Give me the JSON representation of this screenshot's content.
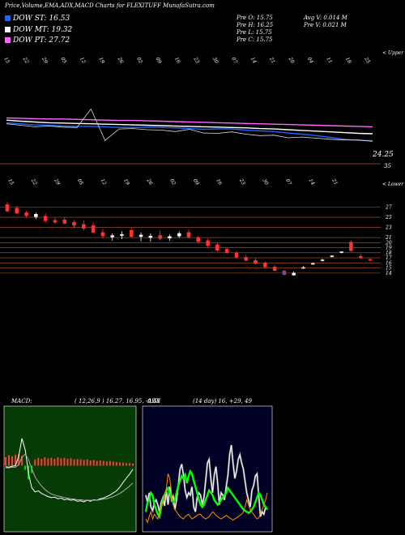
{
  "header": {
    "title": "Price,Volume,EMA,ADX,MACD Charts for FLEXITUFF MunafaSutra.com",
    "dow_st": "DOW ST: 16.53",
    "dow_mt": "DOW MT: 19.32",
    "dow_pt": "DOW PT: 27.72",
    "pre_o": "Pre   O: 15.75",
    "pre_h": "Pre   H: 16.25",
    "pre_l": "Pre   L: 15.75",
    "pre_c": "Pre   C: 15.75",
    "avg_v": "Avg V: 0.014   M",
    "pre_v": "Pre   V: 0.021 M",
    "upper_label": "< Upper",
    "lower_label": "< Lower",
    "ema_price_label": "24.25",
    "ema_axis_label": "35"
  },
  "colors": {
    "dow_st": "#1a66ff",
    "dow_mt": "#ffffff",
    "dow_pt": "#ff66ff",
    "up_candle": "#ffffff",
    "down_candle": "#ff3333",
    "grid": "#b35a28",
    "adx_plus": "#00ff00",
    "adx_minus": "#ff8c00"
  },
  "chart_data": [
    {
      "type": "line",
      "panel": "ema",
      "series": [
        {
          "name": "DOW ST",
          "values": [
            29.3,
            29.0,
            28.7,
            28.6,
            28.4,
            28.3,
            28.3,
            28.2,
            28.0,
            28.0,
            28.1,
            28.0,
            27.9,
            27.7,
            27.5,
            27.6,
            27.6,
            27.3,
            27.1,
            26.9,
            26.5,
            26.2,
            25.8,
            25.3,
            24.8,
            24.5,
            24.4
          ]
        },
        {
          "name": "DOW MT",
          "values": [
            30.0,
            29.7,
            29.5,
            29.3,
            29.2,
            29.1,
            29.0,
            28.9,
            28.8,
            28.7,
            28.6,
            28.5,
            28.4,
            28.3,
            28.2,
            28.1,
            28.0,
            27.9,
            27.7,
            27.6,
            27.4,
            27.2,
            27.0,
            26.8,
            26.6,
            26.4,
            26.3
          ]
        },
        {
          "name": "DOW PT",
          "values": [
            30.6,
            30.5,
            30.4,
            30.3,
            30.3,
            30.2,
            30.1,
            30.0,
            29.9,
            29.9,
            29.8,
            29.7,
            29.6,
            29.5,
            29.4,
            29.3,
            29.2,
            29.1,
            29.0,
            28.9,
            28.8,
            28.7,
            28.6,
            28.5,
            28.4,
            28.3,
            28.2
          ]
        }
      ],
      "price_values": [
        29.0,
        28.6,
        28.2,
        28.4,
        28.1,
        28.0,
        33.0,
        24.5,
        27.6,
        27.7,
        27.4,
        27.3,
        26.9,
        27.5,
        26.5,
        26.4,
        26.8,
        26.2,
        25.8,
        25.9,
        25.2,
        25.4,
        25.1,
        24.8,
        24.6,
        24.6,
        24.25
      ],
      "date_labels": [
        "15",
        "22",
        "29",
        "05",
        "12",
        "19",
        "26",
        "02",
        "09",
        "16",
        "23",
        "30",
        "07",
        "14",
        "21",
        "28",
        "04",
        "11",
        "18",
        "25"
      ]
    },
    {
      "type": "bar",
      "panel": "candles",
      "y_ticks": [
        27,
        25,
        23,
        21,
        20,
        19,
        18,
        17,
        16,
        15,
        14
      ],
      "candles": [
        {
          "o": 27.5,
          "h": 28.0,
          "l": 26.0,
          "c": 26.2
        },
        {
          "o": 26.8,
          "h": 27.3,
          "l": 25.6,
          "c": 25.8
        },
        {
          "o": 25.9,
          "h": 26.3,
          "l": 24.9,
          "c": 25.3
        },
        {
          "o": 25.1,
          "h": 25.9,
          "l": 24.7,
          "c": 25.6
        },
        {
          "o": 25.2,
          "h": 25.8,
          "l": 23.9,
          "c": 24.3
        },
        {
          "o": 24.4,
          "h": 24.9,
          "l": 23.7,
          "c": 24.0
        },
        {
          "o": 24.5,
          "h": 25.0,
          "l": 23.6,
          "c": 23.8
        },
        {
          "o": 24.0,
          "h": 24.5,
          "l": 22.8,
          "c": 23.4
        },
        {
          "o": 23.6,
          "h": 24.4,
          "l": 22.4,
          "c": 22.8
        },
        {
          "o": 23.4,
          "h": 24.0,
          "l": 21.7,
          "c": 22.0
        },
        {
          "o": 22.0,
          "h": 22.7,
          "l": 20.8,
          "c": 21.3
        },
        {
          "o": 21.1,
          "h": 21.8,
          "l": 20.4,
          "c": 21.4
        },
        {
          "o": 21.4,
          "h": 22.2,
          "l": 20.7,
          "c": 21.6
        },
        {
          "o": 22.4,
          "h": 23.0,
          "l": 20.9,
          "c": 21.2
        },
        {
          "o": 21.2,
          "h": 22.0,
          "l": 20.3,
          "c": 21.5
        },
        {
          "o": 21.0,
          "h": 21.8,
          "l": 20.2,
          "c": 21.3
        },
        {
          "o": 21.4,
          "h": 22.3,
          "l": 20.5,
          "c": 20.8
        },
        {
          "o": 20.9,
          "h": 21.6,
          "l": 20.4,
          "c": 21.2
        },
        {
          "o": 21.3,
          "h": 22.2,
          "l": 20.9,
          "c": 21.8
        },
        {
          "o": 22.0,
          "h": 22.6,
          "l": 20.8,
          "c": 21.1
        },
        {
          "o": 21.0,
          "h": 21.4,
          "l": 19.8,
          "c": 20.2
        },
        {
          "o": 20.4,
          "h": 20.8,
          "l": 19.1,
          "c": 19.4
        },
        {
          "o": 19.6,
          "h": 20.0,
          "l": 18.2,
          "c": 18.5
        },
        {
          "o": 18.7,
          "h": 19.1,
          "l": 17.8,
          "c": 18.0
        },
        {
          "o": 18.0,
          "h": 18.4,
          "l": 16.9,
          "c": 17.1
        },
        {
          "o": 17.1,
          "h": 17.6,
          "l": 16.3,
          "c": 16.5
        },
        {
          "o": 16.5,
          "h": 16.9,
          "l": 15.7,
          "c": 15.9
        },
        {
          "o": 16.0,
          "h": 16.3,
          "l": 15.0,
          "c": 15.2
        },
        {
          "o": 15.2,
          "h": 15.6,
          "l": 14.3,
          "c": 14.5
        },
        {
          "o": 14.4,
          "h": 14.6,
          "l": 13.6,
          "c": 13.7
        },
        {
          "o": 13.6,
          "h": 14.3,
          "l": 13.5,
          "c": 14.0
        },
        {
          "o": 15.0,
          "h": 15.4,
          "l": 14.8,
          "c": 15.1
        },
        {
          "o": 15.8,
          "h": 16.1,
          "l": 15.6,
          "c": 15.9
        },
        {
          "o": 16.5,
          "h": 16.8,
          "l": 16.3,
          "c": 16.6
        },
        {
          "o": 17.3,
          "h": 17.5,
          "l": 17.1,
          "c": 17.4
        },
        {
          "o": 18.1,
          "h": 18.3,
          "l": 17.9,
          "c": 18.2
        },
        {
          "o": 20.1,
          "h": 20.4,
          "l": 18.2,
          "c": 18.4
        },
        {
          "o": 17.3,
          "h": 17.8,
          "l": 16.8,
          "c": 17.0
        },
        {
          "o": 16.7,
          "h": 16.9,
          "l": 16.2,
          "c": 16.6
        }
      ],
      "date_labels": [
        "15",
        "22",
        "29",
        "05",
        "12",
        "19",
        "26",
        "02",
        "09",
        "16",
        "23",
        "30",
        "07",
        "14",
        "21"
      ]
    },
    {
      "type": "bar",
      "panel": "macd",
      "label": "MACD:",
      "params": "( 12,26,9 ) 16.27, 16.95, -0.68",
      "hist": [
        1.6,
        2.0,
        1.8,
        2.1,
        2.2,
        1.9,
        -0.8,
        -2.6,
        -1.4,
        1.2,
        1.5,
        1.3,
        1.6,
        1.4,
        1.5,
        1.3,
        1.6,
        1.4,
        1.5,
        1.3,
        1.4,
        1.2,
        1.3,
        1.2,
        1.1,
        1.2,
        1.0,
        1.1,
        0.9,
        1.0,
        0.9,
        0.8,
        0.9,
        0.8,
        0.7,
        0.6,
        0.6,
        0.5,
        0.5,
        0.4
      ],
      "macd": [
        -0.2,
        -0.3,
        -0.1,
        0.0,
        1.8,
        5.2,
        3.0,
        -1.5,
        -4.2,
        -5.0,
        -4.8,
        -5.3,
        -5.6,
        -5.9,
        -6.1,
        -6.0,
        -6.3,
        -6.2,
        -6.5,
        -6.4,
        -6.6,
        -6.5,
        -6.8,
        -6.7,
        -6.9,
        -6.6,
        -6.8,
        -6.5,
        -6.6,
        -6.3,
        -6.2,
        -5.9,
        -5.6,
        -5.2,
        -4.8,
        -4.1,
        -3.2,
        -2.4,
        -1.6,
        -0.7
      ],
      "signal": [
        -0.4,
        -0.4,
        -0.3,
        -0.3,
        0.2,
        1.6,
        2.2,
        1.2,
        -0.6,
        -2.1,
        -3.1,
        -3.9,
        -4.5,
        -5.0,
        -5.4,
        -5.6,
        -5.8,
        -5.9,
        -6.1,
        -6.2,
        -6.3,
        -6.4,
        -6.5,
        -6.5,
        -6.6,
        -6.6,
        -6.6,
        -6.6,
        -6.6,
        -6.5,
        -6.4,
        -6.3,
        -6.1,
        -5.9,
        -5.6,
        -5.3,
        -4.9,
        -4.4,
        -3.9,
        -3.3
      ],
      "ylim": [
        -12,
        12
      ]
    },
    {
      "type": "line",
      "panel": "adx",
      "label": "ADX",
      "params": "(14  day) 16,  +29,  49",
      "series": [
        {
          "name": "ADX",
          "values": [
            28,
            22,
            30,
            18,
            15,
            22,
            24,
            20,
            14,
            22,
            26,
            19,
            32,
            20,
            35,
            24,
            27,
            16,
            24,
            36,
            50,
            54,
            45,
            32,
            26,
            30,
            28,
            35,
            18,
            14,
            26,
            30,
            28,
            20,
            26,
            40,
            55,
            58,
            42,
            30,
            45,
            52,
            38,
            20,
            30,
            28,
            24,
            35,
            45,
            62,
            70,
            55,
            42,
            48,
            58,
            62,
            55,
            50,
            40,
            30,
            24,
            18,
            32,
            36,
            44,
            46,
            28,
            10,
            14,
            12,
            18,
            16
          ]
        },
        {
          "name": "+DI",
          "values": [
            14,
            22,
            24,
            30,
            28,
            20,
            16,
            12,
            10,
            18,
            24,
            28,
            32,
            34,
            30,
            26,
            22,
            24,
            30,
            36,
            40,
            44,
            42,
            45,
            38,
            44,
            48,
            46,
            40,
            35,
            30,
            24,
            20,
            18,
            20,
            24,
            28,
            32,
            30,
            28,
            24,
            22,
            20,
            22,
            24,
            26,
            28,
            30,
            34,
            32,
            30,
            28,
            26,
            24,
            22,
            20,
            18,
            16,
            15,
            14,
            13,
            14,
            16,
            18,
            22,
            26,
            30,
            28,
            24,
            20,
            18,
            16
          ]
        },
        {
          "name": "-DI",
          "values": [
            8,
            5,
            10,
            14,
            8,
            12,
            10,
            8,
            14,
            18,
            22,
            28,
            34,
            46,
            42,
            30,
            20,
            16,
            14,
            12,
            10,
            9,
            8,
            10,
            11,
            12,
            10,
            8,
            9,
            10,
            11,
            12,
            12,
            10,
            9,
            8,
            9,
            10,
            12,
            14,
            13,
            11,
            10,
            9,
            8,
            9,
            10,
            11,
            10,
            9,
            8,
            7,
            8,
            9,
            10,
            11,
            12,
            14,
            18,
            24,
            20,
            16,
            14,
            12,
            10,
            8,
            9,
            12,
            16,
            20,
            24,
            30
          ]
        }
      ],
      "ylim": [
        0,
        100
      ]
    }
  ]
}
